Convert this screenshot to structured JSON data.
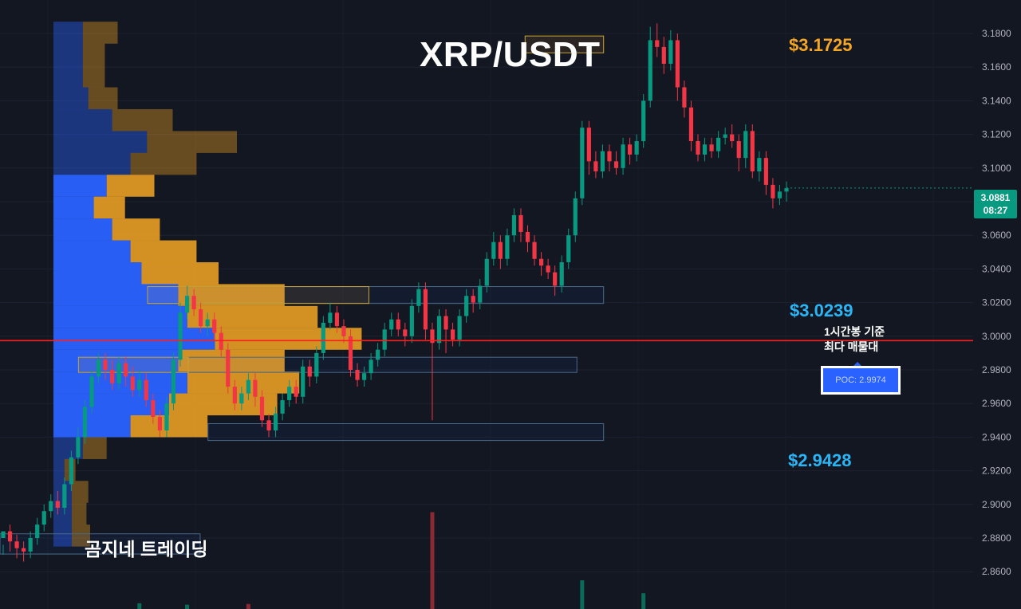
{
  "colors": {
    "background": "#131722",
    "grid": "#1e2230",
    "up": "#089981",
    "down": "#f23645",
    "vp_up": "#2962ff",
    "vp_down": "#f5a623",
    "poc_line": "#ff1e1e",
    "level_orange": "#f5a623",
    "level_blue": "#29b6f6"
  },
  "chart_data": {
    "type": "candlestick",
    "title": "XRP/USDT",
    "timeframe_note": "1시간봉 기준 최다 매물대",
    "brand": "곰지네 트레이딩",
    "ylim": [
      2.86,
      3.19
    ],
    "y_ticks": [
      "3.1800",
      "3.1600",
      "3.1400",
      "3.1200",
      "3.1000",
      "3.0800",
      "3.0600",
      "3.0400",
      "3.0200",
      "3.0000",
      "2.9800",
      "2.9600",
      "2.9400",
      "2.9200",
      "2.9000",
      "2.8800",
      "2.8600"
    ],
    "last_price": "3.0881",
    "countdown": "08:27",
    "poc": {
      "label": "POC: 2.9974",
      "value": 2.9974
    },
    "levels": [
      {
        "label": "$3.1725",
        "value": 3.1725,
        "color": "orange"
      },
      {
        "label": "$3.0239",
        "value": 3.0239,
        "color": "blue"
      },
      {
        "label": "$2.9428",
        "value": 2.9428,
        "color": "blue"
      }
    ],
    "zones": [
      {
        "x0": 0.669,
        "x1": 0.769,
        "y0": 3.1685,
        "y1": 3.1785,
        "color": "orange"
      },
      {
        "x0": 0.188,
        "x1": 0.769,
        "y0": 3.0195,
        "y1": 3.0295,
        "color": "blue"
      },
      {
        "x0": 0.188,
        "x1": 0.47,
        "y0": 3.0195,
        "y1": 3.0295,
        "color": "orange"
      },
      {
        "x0": 0.1,
        "x1": 0.735,
        "y0": 2.9785,
        "y1": 2.9875,
        "color": "blue"
      },
      {
        "x0": 0.1,
        "x1": 0.24,
        "y0": 2.9785,
        "y1": 2.9875,
        "color": "orange"
      },
      {
        "x0": 0.265,
        "x1": 0.769,
        "y0": 2.938,
        "y1": 2.948,
        "color": "blue"
      },
      {
        "x0": 0.0,
        "x1": 0.255,
        "y0": 2.8705,
        "y1": 2.8825,
        "color": "blue"
      }
    ],
    "volume_profile": [
      {
        "price": 3.18,
        "up": 16,
        "down": 19
      },
      {
        "price": 3.167,
        "up": 16,
        "down": 12
      },
      {
        "price": 3.154,
        "up": 16,
        "down": 12
      },
      {
        "price": 3.141,
        "up": 19,
        "down": 16
      },
      {
        "price": 3.128,
        "up": 32,
        "down": 33
      },
      {
        "price": 3.115,
        "up": 51,
        "down": 49
      },
      {
        "price": 3.102,
        "up": 42,
        "down": 36
      },
      {
        "price": 3.089,
        "up": 29,
        "down": 26
      },
      {
        "price": 3.076,
        "up": 22,
        "down": 17
      },
      {
        "price": 3.063,
        "up": 32,
        "down": 26
      },
      {
        "price": 3.05,
        "up": 42,
        "down": 36
      },
      {
        "price": 3.037,
        "up": 48,
        "down": 42
      },
      {
        "price": 3.024,
        "up": 68,
        "down": 58
      },
      {
        "price": 3.011,
        "up": 73,
        "down": 71
      },
      {
        "price": 2.998,
        "up": 88,
        "down": 80
      },
      {
        "price": 2.985,
        "up": 68,
        "down": 58
      },
      {
        "price": 2.972,
        "up": 73,
        "down": 61
      },
      {
        "price": 2.959,
        "up": 63,
        "down": 59
      },
      {
        "price": 2.946,
        "up": 42,
        "down": 42
      },
      {
        "price": 2.933,
        "up": 16,
        "down": 13
      },
      {
        "price": 2.92,
        "up": 6,
        "down": 6
      },
      {
        "price": 2.907,
        "up": 10,
        "down": 9
      },
      {
        "price": 2.894,
        "up": 10,
        "down": 8
      },
      {
        "price": 2.881,
        "up": 10,
        "down": 10
      }
    ],
    "candles": [
      [
        2.88,
        2.884,
        2.876,
        2.87
      ],
      [
        2.884,
        2.878,
        2.888,
        2.872
      ],
      [
        2.878,
        2.874,
        2.882,
        2.868
      ],
      [
        2.874,
        2.872,
        2.878,
        2.866
      ],
      [
        2.872,
        2.88,
        2.884,
        2.868
      ],
      [
        2.88,
        2.888,
        2.892,
        2.876
      ],
      [
        2.888,
        2.896,
        2.9,
        2.884
      ],
      [
        2.896,
        2.902,
        2.906,
        2.892
      ],
      [
        2.902,
        2.898,
        2.908,
        2.894
      ],
      [
        2.898,
        2.912,
        2.916,
        2.894
      ],
      [
        2.912,
        2.928,
        2.932,
        2.908
      ],
      [
        2.928,
        2.94,
        2.946,
        2.924
      ],
      [
        2.94,
        2.958,
        2.962,
        2.936
      ],
      [
        2.958,
        2.976,
        2.98,
        2.954
      ],
      [
        2.976,
        2.986,
        2.99,
        2.972
      ],
      [
        2.986,
        2.98,
        2.99,
        2.974
      ],
      [
        2.98,
        2.972,
        2.986,
        2.968
      ],
      [
        2.972,
        2.984,
        2.988,
        2.968
      ],
      [
        2.984,
        2.976,
        2.988,
        2.97
      ],
      [
        2.976,
        2.968,
        2.982,
        2.964
      ],
      [
        2.968,
        2.974,
        2.98,
        2.964
      ],
      [
        2.974,
        2.962,
        2.978,
        2.958
      ],
      [
        2.962,
        2.952,
        2.966,
        2.948
      ],
      [
        2.952,
        2.944,
        2.956,
        2.94
      ],
      [
        2.944,
        2.96,
        2.964,
        2.94
      ],
      [
        2.96,
        2.986,
        2.99,
        2.956
      ],
      [
        2.986,
        3.014,
        3.02,
        2.982
      ],
      [
        3.014,
        3.024,
        3.03,
        3.01
      ],
      [
        3.024,
        3.016,
        3.028,
        3.012
      ],
      [
        3.016,
        3.006,
        3.02,
        3.002
      ],
      [
        3.006,
        3.01,
        3.014,
        3.0
      ],
      [
        3.01,
        3.002,
        3.014,
        2.998
      ],
      [
        3.002,
        2.992,
        3.006,
        2.988
      ],
      [
        2.992,
        2.97,
        2.996,
        2.966
      ],
      [
        2.97,
        2.96,
        2.974,
        2.956
      ],
      [
        2.96,
        2.966,
        2.97,
        2.956
      ],
      [
        2.966,
        2.974,
        2.978,
        2.962
      ],
      [
        2.974,
        2.964,
        2.978,
        2.958
      ],
      [
        2.964,
        2.95,
        2.968,
        2.946
      ],
      [
        2.95,
        2.944,
        2.954,
        2.94
      ],
      [
        2.944,
        2.954,
        2.958,
        2.94
      ],
      [
        2.954,
        2.962,
        2.966,
        2.95
      ],
      [
        2.962,
        2.97,
        2.974,
        2.958
      ],
      [
        2.97,
        2.964,
        2.974,
        2.96
      ],
      [
        2.964,
        2.982,
        2.986,
        2.96
      ],
      [
        2.982,
        2.976,
        2.986,
        2.97
      ],
      [
        2.976,
        2.99,
        2.994,
        2.972
      ],
      [
        2.99,
        3.008,
        3.012,
        2.986
      ],
      [
        3.008,
        3.014,
        3.02,
        3.004
      ],
      [
        3.014,
        3.006,
        3.018,
        3.002
      ],
      [
        3.006,
        3.0,
        3.01,
        2.996
      ],
      [
        3.0,
        2.98,
        3.004,
        2.976
      ],
      [
        2.98,
        2.974,
        2.984,
        2.97
      ],
      [
        2.974,
        2.978,
        2.982,
        2.97
      ],
      [
        2.978,
        2.986,
        2.99,
        2.974
      ],
      [
        2.986,
        2.992,
        2.996,
        2.982
      ],
      [
        2.992,
        3.004,
        3.008,
        2.988
      ],
      [
        3.004,
        3.01,
        3.014,
        3.0
      ],
      [
        3.01,
        3.004,
        3.014,
        3.0
      ],
      [
        3.004,
        3.0,
        3.008,
        2.994
      ],
      [
        3.0,
        3.018,
        3.022,
        2.996
      ],
      [
        3.018,
        3.028,
        3.032,
        3.014
      ],
      [
        3.028,
        3.004,
        3.032,
        2.998
      ],
      [
        3.004,
        2.996,
        3.008,
        2.95
      ],
      [
        2.996,
        3.012,
        3.016,
        2.992
      ],
      [
        3.012,
        3.004,
        3.016,
        2.99
      ],
      [
        3.004,
        2.998,
        3.008,
        2.994
      ],
      [
        2.998,
        3.012,
        3.016,
        2.994
      ],
      [
        3.012,
        3.024,
        3.028,
        3.008
      ],
      [
        3.024,
        3.02,
        3.028,
        3.014
      ],
      [
        3.02,
        3.03,
        3.034,
        3.016
      ],
      [
        3.03,
        3.046,
        3.05,
        3.026
      ],
      [
        3.046,
        3.056,
        3.062,
        3.042
      ],
      [
        3.056,
        3.046,
        3.06,
        3.04
      ],
      [
        3.046,
        3.06,
        3.064,
        3.042
      ],
      [
        3.06,
        3.072,
        3.076,
        3.056
      ],
      [
        3.072,
        3.062,
        3.076,
        3.056
      ],
      [
        3.062,
        3.056,
        3.066,
        3.05
      ],
      [
        3.056,
        3.046,
        3.06,
        3.042
      ],
      [
        3.046,
        3.042,
        3.05,
        3.036
      ],
      [
        3.042,
        3.038,
        3.046,
        3.034
      ],
      [
        3.038,
        3.03,
        3.042,
        3.024
      ],
      [
        3.03,
        3.044,
        3.048,
        3.026
      ],
      [
        3.044,
        3.06,
        3.064,
        3.04
      ],
      [
        3.06,
        3.082,
        3.086,
        3.056
      ],
      [
        3.082,
        3.124,
        3.128,
        3.078
      ],
      [
        3.124,
        3.104,
        3.128,
        3.096
      ],
      [
        3.104,
        3.098,
        3.11,
        3.094
      ],
      [
        3.098,
        3.11,
        3.114,
        3.094
      ],
      [
        3.11,
        3.104,
        3.114,
        3.098
      ],
      [
        3.104,
        3.1,
        3.11,
        3.096
      ],
      [
        3.1,
        3.114,
        3.118,
        3.096
      ],
      [
        3.114,
        3.108,
        3.118,
        3.102
      ],
      [
        3.108,
        3.116,
        3.12,
        3.104
      ],
      [
        3.116,
        3.14,
        3.144,
        3.112
      ],
      [
        3.14,
        3.176,
        3.184,
        3.136
      ],
      [
        3.176,
        3.172,
        3.186,
        3.166
      ],
      [
        3.172,
        3.162,
        3.178,
        3.156
      ],
      [
        3.162,
        3.176,
        3.182,
        3.158
      ],
      [
        3.176,
        3.148,
        3.18,
        3.14
      ],
      [
        3.148,
        3.136,
        3.152,
        3.13
      ],
      [
        3.136,
        3.116,
        3.14,
        3.11
      ],
      [
        3.116,
        3.108,
        3.12,
        3.104
      ],
      [
        3.108,
        3.114,
        3.118,
        3.104
      ],
      [
        3.114,
        3.11,
        3.118,
        3.106
      ],
      [
        3.11,
        3.118,
        3.122,
        3.106
      ],
      [
        3.118,
        3.12,
        3.124,
        3.114
      ],
      [
        3.12,
        3.116,
        3.126,
        3.112
      ],
      [
        3.116,
        3.106,
        3.12,
        3.098
      ],
      [
        3.106,
        3.122,
        3.126,
        3.1
      ],
      [
        3.122,
        3.098,
        3.126,
        3.094
      ],
      [
        3.098,
        3.106,
        3.11,
        3.092
      ],
      [
        3.106,
        3.09,
        3.11,
        3.084
      ],
      [
        3.09,
        3.082,
        3.094,
        3.076
      ],
      [
        3.082,
        3.086,
        3.09,
        3.078
      ],
      [
        3.086,
        3.088,
        3.092,
        3.08
      ]
    ],
    "volume": [
      {
        "i": 63,
        "v": 0.135,
        "dir": "down"
      },
      {
        "i": 85,
        "v": 0.04,
        "dir": "up"
      },
      {
        "i": 94,
        "v": 0.022,
        "dir": "up"
      },
      {
        "i": 20,
        "v": 0.008,
        "dir": "up"
      },
      {
        "i": 27,
        "v": 0.006,
        "dir": "up"
      },
      {
        "i": 36,
        "v": 0.007,
        "dir": "down"
      }
    ]
  }
}
